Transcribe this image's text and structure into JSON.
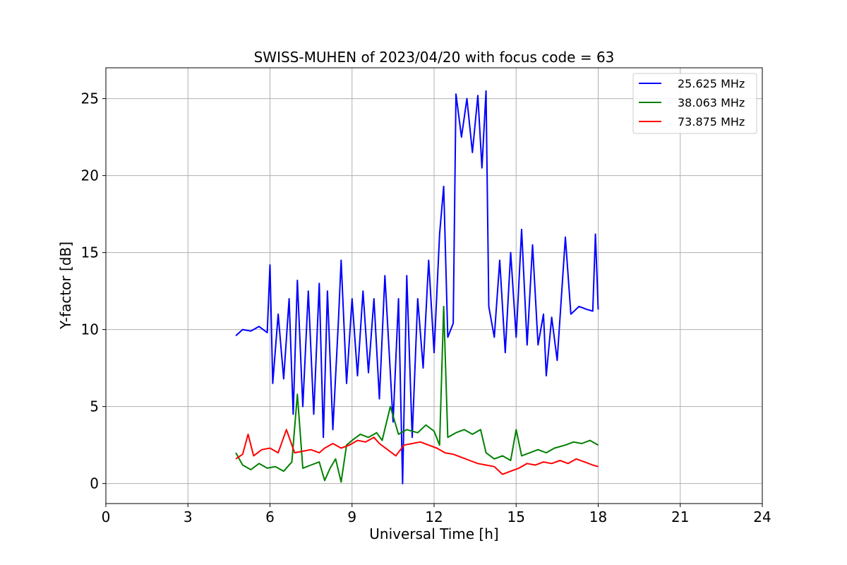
{
  "chart_data": {
    "type": "line",
    "title": "SWISS-MUHEN of 2023/04/20 with focus code = 63",
    "xlabel": "Universal Time [h]",
    "ylabel": "Y-factor [dB]",
    "xlim": [
      0,
      24
    ],
    "ylim": [
      -1.3,
      27
    ],
    "xticks": [
      0,
      3,
      6,
      9,
      12,
      15,
      18,
      21,
      24
    ],
    "yticks": [
      0,
      5,
      10,
      15,
      20,
      25
    ],
    "grid": true,
    "legend_position": "top-right",
    "series": [
      {
        "name": "25.625 MHz",
        "color": "#0000ff",
        "points": [
          [
            4.75,
            9.6
          ],
          [
            5.0,
            10.0
          ],
          [
            5.3,
            9.9
          ],
          [
            5.6,
            10.2
          ],
          [
            5.9,
            9.8
          ],
          [
            6.0,
            14.2
          ],
          [
            6.1,
            6.5
          ],
          [
            6.3,
            11.0
          ],
          [
            6.5,
            6.8
          ],
          [
            6.7,
            12.0
          ],
          [
            6.85,
            4.5
          ],
          [
            7.0,
            13.2
          ],
          [
            7.2,
            5.0
          ],
          [
            7.4,
            12.5
          ],
          [
            7.6,
            4.5
          ],
          [
            7.8,
            13.0
          ],
          [
            7.95,
            3.0
          ],
          [
            8.1,
            12.5
          ],
          [
            8.3,
            3.5
          ],
          [
            8.5,
            10.5
          ],
          [
            8.6,
            14.5
          ],
          [
            8.8,
            6.5
          ],
          [
            9.0,
            12.0
          ],
          [
            9.2,
            7.0
          ],
          [
            9.4,
            12.5
          ],
          [
            9.6,
            7.2
          ],
          [
            9.8,
            12.0
          ],
          [
            10.0,
            5.5
          ],
          [
            10.2,
            13.5
          ],
          [
            10.5,
            4.0
          ],
          [
            10.7,
            12.0
          ],
          [
            10.85,
            0.0
          ],
          [
            11.0,
            13.5
          ],
          [
            11.2,
            3.0
          ],
          [
            11.4,
            12.0
          ],
          [
            11.6,
            7.5
          ],
          [
            11.8,
            14.5
          ],
          [
            12.0,
            8.5
          ],
          [
            12.2,
            16.2
          ],
          [
            12.35,
            19.3
          ],
          [
            12.5,
            9.5
          ],
          [
            12.7,
            10.4
          ],
          [
            12.8,
            25.3
          ],
          [
            13.0,
            22.5
          ],
          [
            13.2,
            25.0
          ],
          [
            13.4,
            21.5
          ],
          [
            13.6,
            25.2
          ],
          [
            13.75,
            20.5
          ],
          [
            13.9,
            25.5
          ],
          [
            14.0,
            11.5
          ],
          [
            14.2,
            9.5
          ],
          [
            14.4,
            14.5
          ],
          [
            14.6,
            8.5
          ],
          [
            14.8,
            15.0
          ],
          [
            15.0,
            9.5
          ],
          [
            15.2,
            16.5
          ],
          [
            15.4,
            9.0
          ],
          [
            15.6,
            15.5
          ],
          [
            15.8,
            9.0
          ],
          [
            16.0,
            11.0
          ],
          [
            16.1,
            7.0
          ],
          [
            16.3,
            10.8
          ],
          [
            16.5,
            8.0
          ],
          [
            16.8,
            16.0
          ],
          [
            17.0,
            11.0
          ],
          [
            17.3,
            11.5
          ],
          [
            17.6,
            11.3
          ],
          [
            17.8,
            11.2
          ],
          [
            17.9,
            16.2
          ],
          [
            18.0,
            11.3
          ]
        ]
      },
      {
        "name": "38.063 MHz",
        "color": "#008000",
        "points": [
          [
            4.75,
            2.0
          ],
          [
            5.0,
            1.2
          ],
          [
            5.3,
            0.9
          ],
          [
            5.6,
            1.3
          ],
          [
            5.9,
            1.0
          ],
          [
            6.2,
            1.1
          ],
          [
            6.5,
            0.8
          ],
          [
            6.8,
            1.4
          ],
          [
            7.0,
            5.8
          ],
          [
            7.2,
            1.0
          ],
          [
            7.5,
            1.2
          ],
          [
            7.8,
            1.4
          ],
          [
            8.0,
            0.2
          ],
          [
            8.2,
            1.0
          ],
          [
            8.4,
            1.6
          ],
          [
            8.6,
            0.1
          ],
          [
            8.8,
            2.5
          ],
          [
            9.0,
            2.8
          ],
          [
            9.3,
            3.2
          ],
          [
            9.6,
            3.0
          ],
          [
            9.9,
            3.3
          ],
          [
            10.1,
            2.8
          ],
          [
            10.4,
            5.0
          ],
          [
            10.7,
            3.2
          ],
          [
            11.0,
            3.5
          ],
          [
            11.4,
            3.3
          ],
          [
            11.7,
            3.8
          ],
          [
            12.0,
            3.4
          ],
          [
            12.2,
            2.5
          ],
          [
            12.35,
            11.5
          ],
          [
            12.5,
            3.0
          ],
          [
            12.8,
            3.3
          ],
          [
            13.1,
            3.5
          ],
          [
            13.4,
            3.2
          ],
          [
            13.7,
            3.5
          ],
          [
            13.9,
            2.0
          ],
          [
            14.2,
            1.6
          ],
          [
            14.5,
            1.8
          ],
          [
            14.8,
            1.5
          ],
          [
            15.0,
            3.5
          ],
          [
            15.2,
            1.8
          ],
          [
            15.5,
            2.0
          ],
          [
            15.8,
            2.2
          ],
          [
            16.1,
            2.0
          ],
          [
            16.4,
            2.3
          ],
          [
            16.8,
            2.5
          ],
          [
            17.1,
            2.7
          ],
          [
            17.4,
            2.6
          ],
          [
            17.7,
            2.8
          ],
          [
            18.0,
            2.5
          ]
        ]
      },
      {
        "name": "73.875 MHz",
        "color": "#ff0000",
        "points": [
          [
            4.75,
            1.6
          ],
          [
            5.0,
            1.9
          ],
          [
            5.2,
            3.2
          ],
          [
            5.4,
            1.8
          ],
          [
            5.7,
            2.2
          ],
          [
            6.0,
            2.3
          ],
          [
            6.3,
            2.0
          ],
          [
            6.6,
            3.5
          ],
          [
            6.9,
            2.0
          ],
          [
            7.2,
            2.1
          ],
          [
            7.5,
            2.2
          ],
          [
            7.8,
            2.0
          ],
          [
            8.0,
            2.3
          ],
          [
            8.3,
            2.6
          ],
          [
            8.6,
            2.3
          ],
          [
            8.9,
            2.5
          ],
          [
            9.2,
            2.8
          ],
          [
            9.5,
            2.7
          ],
          [
            9.8,
            3.0
          ],
          [
            10.0,
            2.6
          ],
          [
            10.3,
            2.2
          ],
          [
            10.6,
            1.8
          ],
          [
            10.9,
            2.5
          ],
          [
            11.2,
            2.6
          ],
          [
            11.5,
            2.7
          ],
          [
            11.8,
            2.5
          ],
          [
            12.1,
            2.3
          ],
          [
            12.4,
            2.0
          ],
          [
            12.7,
            1.9
          ],
          [
            13.0,
            1.7
          ],
          [
            13.3,
            1.5
          ],
          [
            13.6,
            1.3
          ],
          [
            13.9,
            1.2
          ],
          [
            14.2,
            1.1
          ],
          [
            14.5,
            0.6
          ],
          [
            14.8,
            0.8
          ],
          [
            15.1,
            1.0
          ],
          [
            15.4,
            1.3
          ],
          [
            15.7,
            1.2
          ],
          [
            16.0,
            1.4
          ],
          [
            16.3,
            1.3
          ],
          [
            16.6,
            1.5
          ],
          [
            16.9,
            1.3
          ],
          [
            17.2,
            1.6
          ],
          [
            17.5,
            1.4
          ],
          [
            17.8,
            1.2
          ],
          [
            18.0,
            1.1
          ]
        ]
      }
    ]
  }
}
